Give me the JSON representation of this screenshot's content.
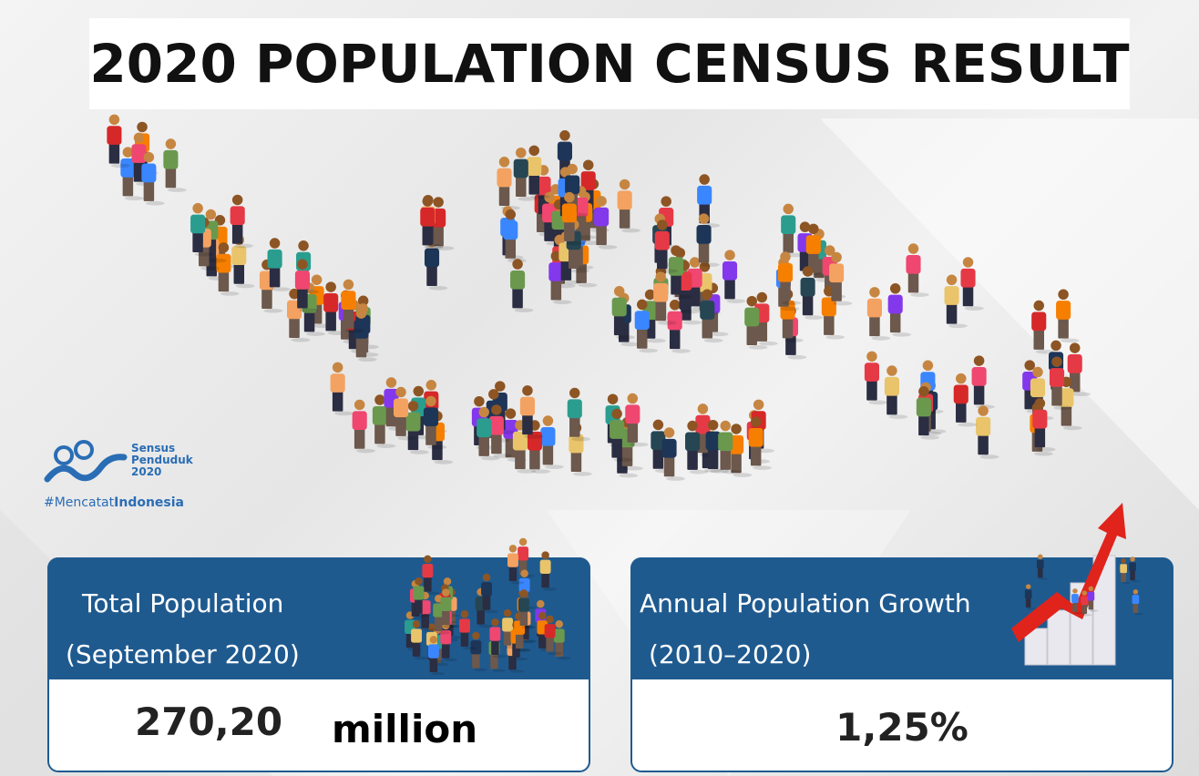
{
  "title": "2020 POPULATION CENSUS RESULT",
  "logo": {
    "line1": "Sensus",
    "line2": "Penduduk",
    "line3": "2020",
    "hashtag_light": "#Mencatat",
    "hashtag_bold": "Indonesia"
  },
  "cards": [
    {
      "label": "Total Population",
      "sublabel": "(September 2020)",
      "value": "270,20",
      "unit": "million"
    },
    {
      "label": "Annual Population Growth",
      "sublabel": "(2010–2020)",
      "value": "1,25%"
    }
  ]
}
